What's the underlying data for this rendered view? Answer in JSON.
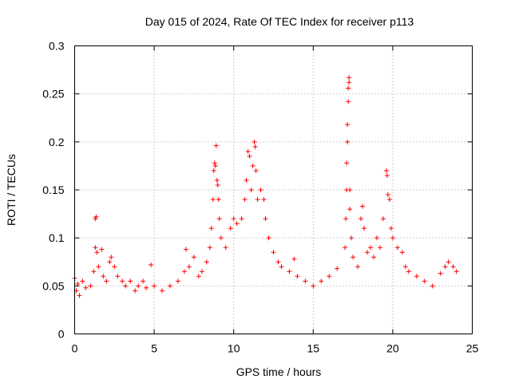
{
  "chart_data": {
    "type": "scatter",
    "title": "Day 015 of 2024, Rate Of TEC Index for receiver p113",
    "xlabel": "GPS time / hours",
    "ylabel": "ROTI / TECUs",
    "xlim": [
      0,
      25
    ],
    "ylim": [
      0,
      0.3
    ],
    "x_ticks": [
      0,
      5,
      10,
      15,
      20,
      25
    ],
    "y_ticks": [
      0,
      0.05,
      0.1,
      0.15,
      0.2,
      0.25,
      0.3
    ],
    "x_tick_labels": [
      "0",
      "5",
      "10",
      "15",
      "20",
      "25"
    ],
    "y_tick_labels": [
      "0",
      "0.05",
      "0.1",
      "0.15",
      "0.2",
      "0.25",
      "0.3"
    ],
    "grid": true,
    "marker": "+",
    "color": "#ff0000",
    "series": [
      {
        "values_note": "",
        "points": [
          [
            0.0,
            0.058
          ],
          [
            0.1,
            0.045
          ],
          [
            0.2,
            0.052
          ],
          [
            0.3,
            0.04
          ],
          [
            0.5,
            0.055
          ],
          [
            0.7,
            0.048
          ],
          [
            1.0,
            0.05
          ],
          [
            1.2,
            0.065
          ],
          [
            1.3,
            0.09
          ],
          [
            1.3,
            0.12
          ],
          [
            1.35,
            0.122
          ],
          [
            1.4,
            0.085
          ],
          [
            1.5,
            0.07
          ],
          [
            1.7,
            0.088
          ],
          [
            1.8,
            0.06
          ],
          [
            2.0,
            0.055
          ],
          [
            2.2,
            0.075
          ],
          [
            2.3,
            0.08
          ],
          [
            2.5,
            0.07
          ],
          [
            2.7,
            0.06
          ],
          [
            3.0,
            0.055
          ],
          [
            3.2,
            0.05
          ],
          [
            3.5,
            0.055
          ],
          [
            3.8,
            0.045
          ],
          [
            4.0,
            0.05
          ],
          [
            4.3,
            0.055
          ],
          [
            4.5,
            0.048
          ],
          [
            4.8,
            0.072
          ],
          [
            5.0,
            0.05
          ],
          [
            5.5,
            0.045
          ],
          [
            6.0,
            0.05
          ],
          [
            6.5,
            0.055
          ],
          [
            6.9,
            0.065
          ],
          [
            7.0,
            0.088
          ],
          [
            7.2,
            0.07
          ],
          [
            7.5,
            0.08
          ],
          [
            7.8,
            0.06
          ],
          [
            8.0,
            0.065
          ],
          [
            8.3,
            0.075
          ],
          [
            8.5,
            0.09
          ],
          [
            8.6,
            0.11
          ],
          [
            8.7,
            0.14
          ],
          [
            8.75,
            0.17
          ],
          [
            8.8,
            0.178
          ],
          [
            8.85,
            0.175
          ],
          [
            8.9,
            0.196
          ],
          [
            8.95,
            0.16
          ],
          [
            9.0,
            0.155
          ],
          [
            9.05,
            0.14
          ],
          [
            9.1,
            0.12
          ],
          [
            9.2,
            0.1
          ],
          [
            9.5,
            0.09
          ],
          [
            9.8,
            0.11
          ],
          [
            10.0,
            0.12
          ],
          [
            10.2,
            0.115
          ],
          [
            10.5,
            0.12
          ],
          [
            10.7,
            0.14
          ],
          [
            10.8,
            0.16
          ],
          [
            10.9,
            0.19
          ],
          [
            11.0,
            0.185
          ],
          [
            11.1,
            0.15
          ],
          [
            11.2,
            0.175
          ],
          [
            11.3,
            0.2
          ],
          [
            11.35,
            0.195
          ],
          [
            11.4,
            0.17
          ],
          [
            11.5,
            0.14
          ],
          [
            11.7,
            0.15
          ],
          [
            11.9,
            0.14
          ],
          [
            12.0,
            0.12
          ],
          [
            12.2,
            0.1
          ],
          [
            12.5,
            0.085
          ],
          [
            12.8,
            0.075
          ],
          [
            13.0,
            0.07
          ],
          [
            13.5,
            0.065
          ],
          [
            13.8,
            0.078
          ],
          [
            14.0,
            0.06
          ],
          [
            14.5,
            0.055
          ],
          [
            15.0,
            0.05
          ],
          [
            15.5,
            0.055
          ],
          [
            16.0,
            0.06
          ],
          [
            16.5,
            0.068
          ],
          [
            17.0,
            0.09
          ],
          [
            17.05,
            0.12
          ],
          [
            17.1,
            0.15
          ],
          [
            17.1,
            0.178
          ],
          [
            17.15,
            0.2
          ],
          [
            17.15,
            0.218
          ],
          [
            17.2,
            0.242
          ],
          [
            17.2,
            0.256
          ],
          [
            17.25,
            0.262
          ],
          [
            17.25,
            0.267
          ],
          [
            17.3,
            0.15
          ],
          [
            17.3,
            0.13
          ],
          [
            17.4,
            0.1
          ],
          [
            17.5,
            0.08
          ],
          [
            17.8,
            0.07
          ],
          [
            18.0,
            0.12
          ],
          [
            18.1,
            0.133
          ],
          [
            18.2,
            0.11
          ],
          [
            18.4,
            0.085
          ],
          [
            18.6,
            0.09
          ],
          [
            18.8,
            0.08
          ],
          [
            19.0,
            0.1
          ],
          [
            19.2,
            0.09
          ],
          [
            19.4,
            0.12
          ],
          [
            19.6,
            0.17
          ],
          [
            19.65,
            0.165
          ],
          [
            19.7,
            0.145
          ],
          [
            19.8,
            0.14
          ],
          [
            19.9,
            0.11
          ],
          [
            20.0,
            0.1
          ],
          [
            20.3,
            0.09
          ],
          [
            20.6,
            0.085
          ],
          [
            20.8,
            0.07
          ],
          [
            21.0,
            0.065
          ],
          [
            21.5,
            0.06
          ],
          [
            22.0,
            0.055
          ],
          [
            22.5,
            0.05
          ],
          [
            23.0,
            0.063
          ],
          [
            23.3,
            0.07
          ],
          [
            23.5,
            0.075
          ],
          [
            23.8,
            0.07
          ],
          [
            24.0,
            0.065
          ]
        ]
      }
    ]
  }
}
